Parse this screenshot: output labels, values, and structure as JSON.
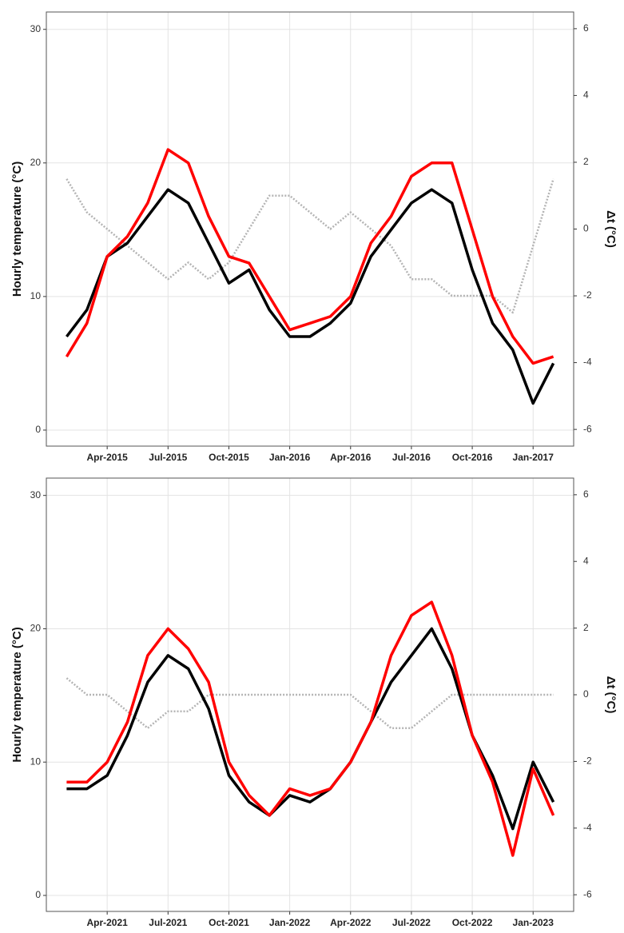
{
  "chart_data": [
    {
      "type": "line",
      "y_label": "Hourly temperature (°C)",
      "y2_label": "Δt (°C)",
      "x": [
        "2015-02",
        "2015-03",
        "2015-04",
        "2015-05",
        "2015-06",
        "2015-07",
        "2015-08",
        "2015-09",
        "2015-10",
        "2015-11",
        "2015-12",
        "2016-01",
        "2016-02",
        "2016-03",
        "2016-04",
        "2016-05",
        "2016-06",
        "2016-07",
        "2016-08",
        "2016-09",
        "2016-10",
        "2016-11",
        "2016-12",
        "2017-01",
        "2017-02"
      ],
      "series": [
        {
          "color": "#b4b4b4",
          "axis": "y2",
          "values": [
            1.5,
            0.5,
            0,
            -0.5,
            -1,
            -1.5,
            -1,
            -1.5,
            -1,
            0,
            1,
            1,
            0.5,
            0,
            0.5,
            0,
            -0.5,
            -1.5,
            -1.5,
            -2,
            -2,
            -2,
            -2.5,
            -0.5,
            1.5
          ]
        },
        {
          "color": "#000000",
          "values": [
            7,
            9,
            13,
            14,
            16,
            18,
            17,
            14,
            11,
            12,
            9,
            7,
            7,
            8,
            9.5,
            13,
            15,
            17,
            18,
            17,
            12,
            8,
            6,
            2,
            5
          ]
        },
        {
          "color": "#ff0000",
          "values": [
            5.5,
            8,
            13,
            14.5,
            17,
            21,
            20,
            16,
            13,
            12.5,
            10,
            7.5,
            8,
            8.5,
            10,
            14,
            16,
            19,
            20,
            20,
            15,
            10,
            7,
            5,
            5.5
          ]
        }
      ],
      "xlim": [
        "2015-01",
        "2017-03"
      ],
      "xticks": [
        {
          "value": "2015-04",
          "label": "Apr-2015"
        },
        {
          "value": "2015-07",
          "label": "Jul-2015"
        },
        {
          "value": "2015-10",
          "label": "Oct-2015"
        },
        {
          "value": "2016-01",
          "label": "Jan-2016"
        },
        {
          "value": "2016-04",
          "label": "Apr-2016"
        },
        {
          "value": "2016-07",
          "label": "Jul-2016"
        },
        {
          "value": "2016-10",
          "label": "Oct-2016"
        },
        {
          "value": "2017-01",
          "label": "Jan-2017"
        }
      ],
      "ylim": [
        -1.2,
        31.3
      ],
      "yticks": [
        0,
        10,
        20,
        30
      ],
      "y2lim": [
        -6.5,
        6.5
      ],
      "y2ticks": [
        -6,
        -4,
        -2,
        0,
        2,
        4,
        6
      ],
      "grid": true
    },
    {
      "type": "line",
      "y_label": "Hourly temperature (°C)",
      "y2_label": "Δt (°C)",
      "x": [
        "2021-02",
        "2021-03",
        "2021-04",
        "2021-05",
        "2021-06",
        "2021-07",
        "2021-08",
        "2021-09",
        "2021-10",
        "2021-11",
        "2021-12",
        "2022-01",
        "2022-02",
        "2022-03",
        "2022-04",
        "2022-05",
        "2022-06",
        "2022-07",
        "2022-08",
        "2022-09",
        "2022-10",
        "2022-11",
        "2022-12",
        "2023-01",
        "2023-02"
      ],
      "series": [
        {
          "color": "#b4b4b4",
          "axis": "y2",
          "values": [
            0.5,
            0,
            0,
            -0.5,
            -1,
            -0.5,
            -0.5,
            0,
            0,
            0,
            0,
            0,
            0,
            0,
            0,
            -0.5,
            -1,
            -1,
            -0.5,
            0,
            0,
            0,
            0,
            0,
            0
          ]
        },
        {
          "color": "#000000",
          "values": [
            8,
            8,
            9,
            12,
            16,
            18,
            17,
            14,
            9,
            7,
            6,
            7.5,
            7,
            8,
            10,
            13,
            16,
            18,
            20,
            17,
            12,
            9,
            5,
            10,
            7
          ]
        },
        {
          "color": "#ff0000",
          "values": [
            8.5,
            8.5,
            10,
            13,
            18,
            20,
            18.5,
            16,
            10,
            7.5,
            6,
            8,
            7.5,
            8,
            10,
            13,
            18,
            21,
            22,
            18,
            12,
            8.5,
            3,
            9.5,
            6
          ]
        }
      ],
      "xlim": [
        "2021-01",
        "2023-03"
      ],
      "xticks": [
        {
          "value": "2021-04",
          "label": "Apr-2021"
        },
        {
          "value": "2021-07",
          "label": "Jul-2021"
        },
        {
          "value": "2021-10",
          "label": "Oct-2021"
        },
        {
          "value": "2022-01",
          "label": "Jan-2022"
        },
        {
          "value": "2022-04",
          "label": "Apr-2022"
        },
        {
          "value": "2022-07",
          "label": "Jul-2022"
        },
        {
          "value": "2022-10",
          "label": "Oct-2022"
        },
        {
          "value": "2023-01",
          "label": "Jan-2023"
        }
      ],
      "ylim": [
        -1.2,
        31.3
      ],
      "yticks": [
        0,
        10,
        20,
        30
      ],
      "y2lim": [
        -6.5,
        6.5
      ],
      "y2ticks": [
        -6,
        -4,
        -2,
        0,
        2,
        4,
        6
      ],
      "grid": true
    }
  ]
}
